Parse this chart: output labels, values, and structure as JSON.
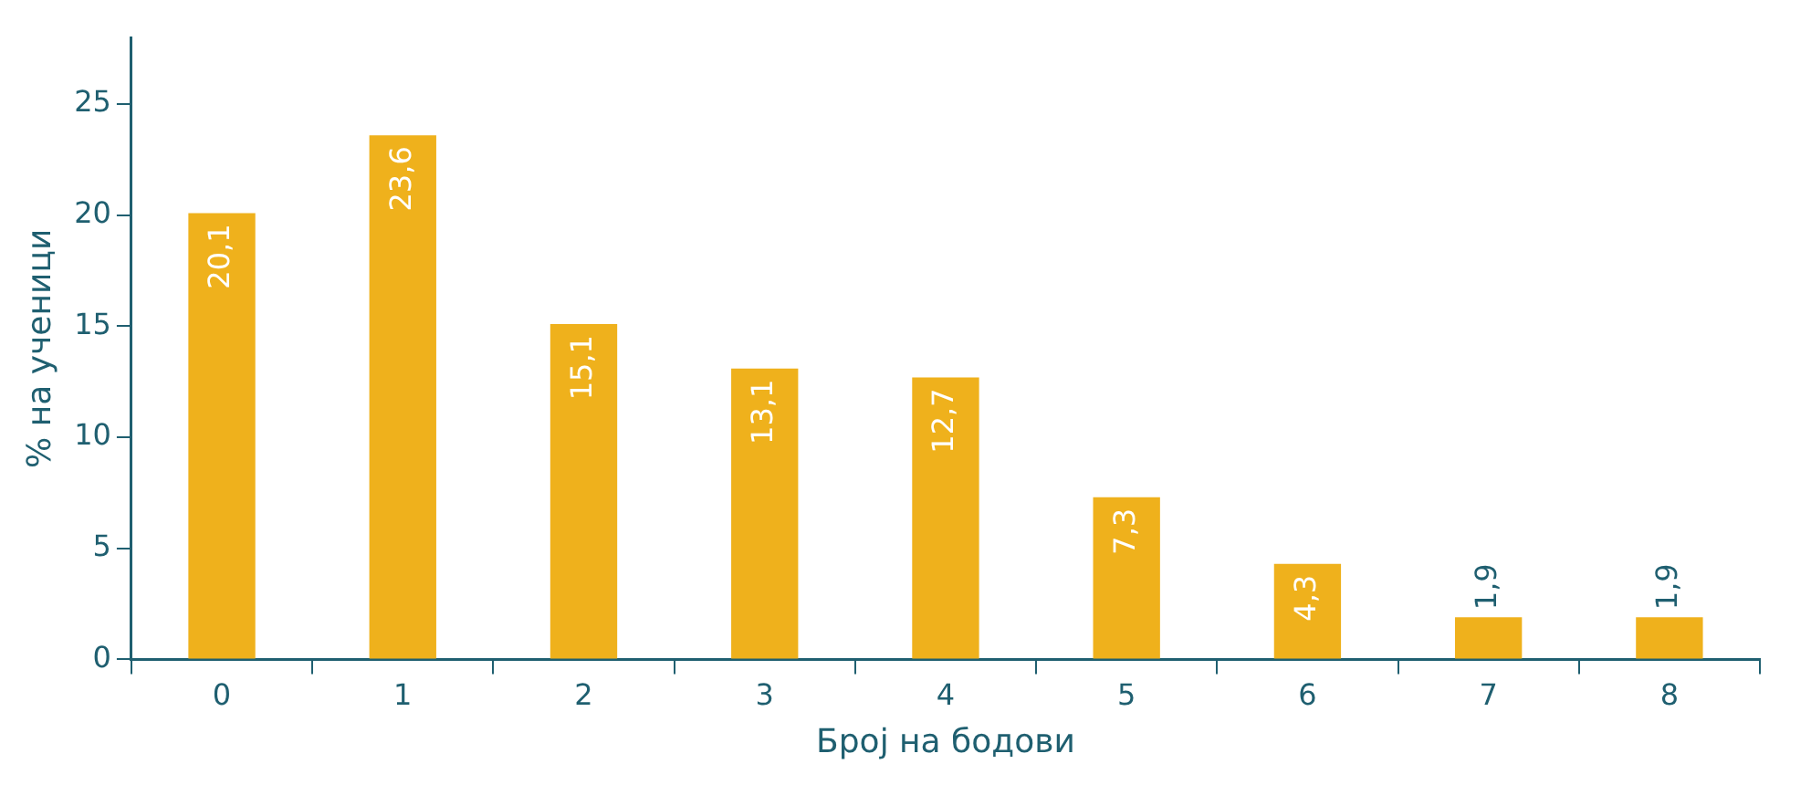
{
  "chart_data": {
    "type": "bar",
    "xlabel": "Број на бодови",
    "ylabel": "% на ученици",
    "categories": [
      "0",
      "1",
      "2",
      "3",
      "4",
      "5",
      "6",
      "7",
      "8"
    ],
    "values": [
      20.1,
      23.6,
      15.1,
      13.1,
      12.7,
      7.3,
      4.3,
      1.9,
      1.9
    ],
    "value_labels": [
      "20,1",
      "23,6",
      "15,1",
      "13,1",
      "12,7",
      "7,3",
      "4,3",
      "1,9",
      "1,9"
    ],
    "color": "#efb11c",
    "ylim": [
      0,
      28
    ],
    "yticks": [
      0,
      5,
      10,
      15,
      20,
      25
    ],
    "grid": false,
    "legend": false
  }
}
